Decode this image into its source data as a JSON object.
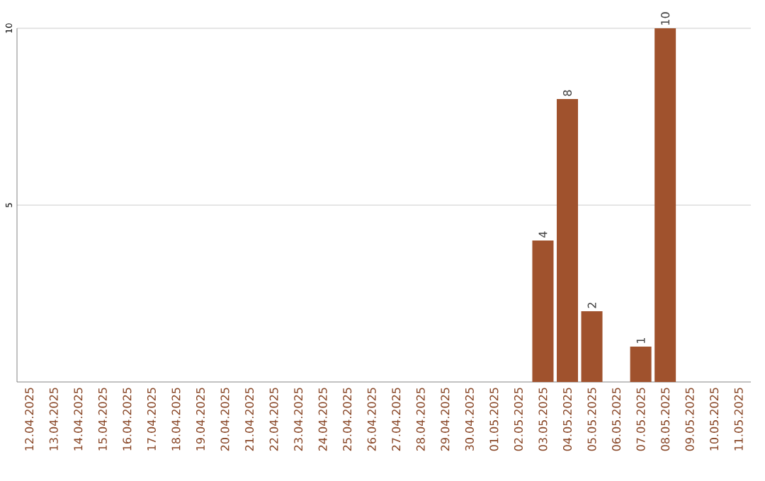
{
  "chart_data": {
    "type": "bar",
    "categories": [
      "12.04.2025",
      "13.04.2025",
      "14.04.2025",
      "15.04.2025",
      "16.04.2025",
      "17.04.2025",
      "18.04.2025",
      "19.04.2025",
      "20.04.2025",
      "21.04.2025",
      "22.04.2025",
      "23.04.2025",
      "24.04.2025",
      "25.04.2025",
      "26.04.2025",
      "27.04.2025",
      "28.04.2025",
      "29.04.2025",
      "30.04.2025",
      "01.05.2025",
      "02.05.2025",
      "03.05.2025",
      "04.05.2025",
      "05.05.2025",
      "06.05.2025",
      "07.05.2025",
      "08.05.2025",
      "09.05.2025",
      "10.05.2025",
      "11.05.2025"
    ],
    "values": [
      0,
      0,
      0,
      0,
      0,
      0,
      0,
      0,
      0,
      0,
      0,
      0,
      0,
      0,
      0,
      0,
      0,
      0,
      0,
      0,
      0,
      4,
      8,
      2,
      0,
      1,
      10,
      0,
      0,
      0
    ],
    "value_labels": [
      null,
      null,
      null,
      null,
      null,
      null,
      null,
      null,
      null,
      null,
      null,
      null,
      null,
      null,
      null,
      null,
      null,
      null,
      null,
      null,
      null,
      "4",
      "8",
      "2",
      null,
      "1",
      "10",
      null,
      null,
      null
    ],
    "color": "#a0522d",
    "ylim": [
      0,
      10
    ],
    "yticks": [
      5,
      10
    ],
    "grid": "y"
  }
}
